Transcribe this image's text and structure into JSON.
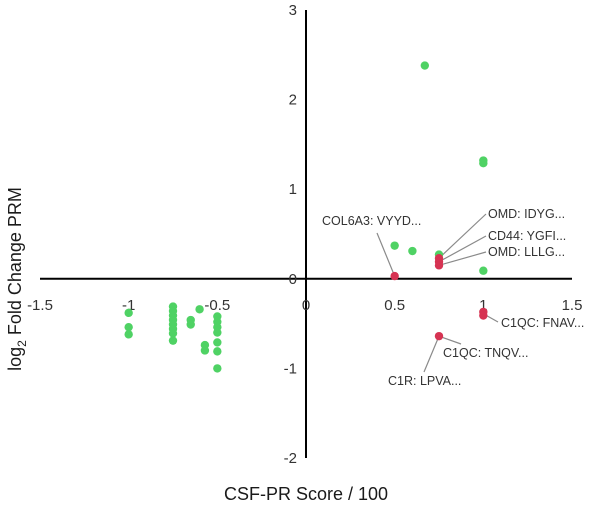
{
  "chart_data": {
    "type": "scatter",
    "title": "",
    "xlabel": "CSF-PR Score / 100",
    "ylabel_base": "log",
    "ylabel_sub": "2",
    "ylabel_rest": " Fold Change PRM",
    "xlim": [
      -1.5,
      1.5
    ],
    "ylim": [
      -2,
      3
    ],
    "xticks": [
      -1.5,
      -1,
      -0.5,
      0,
      0.5,
      1,
      1.5
    ],
    "xtick_labels": [
      "-1.5",
      "-1",
      "-0.5",
      "0",
      "0.5",
      "1",
      "1.5"
    ],
    "yticks": [
      -2,
      -1,
      0,
      1,
      2,
      3
    ],
    "ytick_labels": [
      "-2",
      "-1",
      "0",
      "1",
      "2",
      "3"
    ],
    "grid": false,
    "legend": "none",
    "colors": {
      "green": "#4fd264",
      "red": "#d63352"
    },
    "series": [
      {
        "color": "#4fd264",
        "points": [
          [
            0.67,
            2.38
          ],
          [
            1.0,
            1.32
          ],
          [
            1.0,
            1.29
          ],
          [
            0.5,
            0.37
          ],
          [
            0.6,
            0.31
          ],
          [
            0.75,
            0.27
          ],
          [
            1.0,
            0.09
          ],
          [
            -1.0,
            -0.38
          ],
          [
            -1.0,
            -0.54
          ],
          [
            -1.0,
            -0.62
          ],
          [
            -0.75,
            -0.31
          ],
          [
            -0.75,
            -0.36
          ],
          [
            -0.75,
            -0.41
          ],
          [
            -0.75,
            -0.46
          ],
          [
            -0.75,
            -0.51
          ],
          [
            -0.75,
            -0.56
          ],
          [
            -0.75,
            -0.61
          ],
          [
            -0.75,
            -0.69
          ],
          [
            -0.65,
            -0.46
          ],
          [
            -0.65,
            -0.51
          ],
          [
            -0.6,
            -0.34
          ],
          [
            -0.57,
            -0.74
          ],
          [
            -0.57,
            -0.8
          ],
          [
            -0.5,
            -0.42
          ],
          [
            -0.5,
            -0.48
          ],
          [
            -0.5,
            -0.54
          ],
          [
            -0.5,
            -0.6
          ],
          [
            -0.5,
            -0.71
          ],
          [
            -0.5,
            -0.81
          ],
          [
            -0.5,
            -1.0
          ]
        ]
      },
      {
        "color": "#d63352",
        "points": [
          [
            0.5,
            0.03
          ],
          [
            0.75,
            0.23
          ],
          [
            0.75,
            0.19
          ],
          [
            0.75,
            0.15
          ],
          [
            1.0,
            -0.37
          ],
          [
            1.0,
            -0.41
          ],
          [
            0.75,
            -0.64
          ]
        ]
      }
    ],
    "annotations": [
      {
        "text": "COL6A3: VYYD...",
        "x": 0.5,
        "y": 0.03
      },
      {
        "text": "OMD: IDYG...",
        "x": 0.75,
        "y": 0.23
      },
      {
        "text": "CD44: YGFI...",
        "x": 0.75,
        "y": 0.19
      },
      {
        "text": "OMD: LLLG...",
        "x": 0.75,
        "y": 0.15
      },
      {
        "text": "C1QC: FNAV...",
        "x": 1.0,
        "y": -0.39
      },
      {
        "text": "C1QC: TNQV...",
        "x": 0.75,
        "y": -0.64
      },
      {
        "text": "C1R: LPVA...",
        "x": 0.75,
        "y": -0.64
      }
    ]
  }
}
